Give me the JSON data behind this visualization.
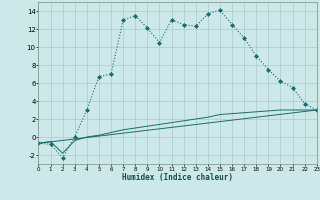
{
  "xlabel": "Humidex (Indice chaleur)",
  "bg_color": "#cce8e8",
  "grid_color": "#aacccc",
  "line_color": "#1a6b6b",
  "xlim": [
    0,
    23
  ],
  "ylim": [
    -3,
    15
  ],
  "xticks": [
    0,
    1,
    2,
    3,
    4,
    5,
    6,
    7,
    8,
    9,
    10,
    11,
    12,
    13,
    14,
    15,
    16,
    17,
    18,
    19,
    20,
    21,
    22,
    23
  ],
  "yticks": [
    -2,
    0,
    2,
    4,
    6,
    8,
    10,
    12,
    14
  ],
  "line1_x": [
    0,
    1,
    2,
    3,
    4,
    5,
    6,
    7,
    8,
    9,
    10,
    11,
    12,
    13,
    14,
    15,
    16,
    17,
    18,
    19,
    20,
    21,
    22,
    23
  ],
  "line1_y": [
    -0.7,
    -0.8,
    -2.3,
    0.0,
    3.0,
    6.7,
    7.0,
    13.0,
    13.5,
    12.1,
    10.5,
    13.0,
    12.5,
    12.3,
    13.7,
    14.1,
    12.5,
    11.0,
    9.0,
    7.5,
    6.2,
    5.5,
    3.7,
    3.0
  ],
  "line2_x": [
    0,
    23
  ],
  "line2_y": [
    -0.7,
    3.0
  ],
  "line3_x": [
    0,
    1,
    2,
    3,
    4,
    5,
    6,
    7,
    8,
    9,
    10,
    11,
    12,
    13,
    14,
    15,
    16,
    17,
    18,
    19,
    20,
    21,
    22,
    23
  ],
  "line3_y": [
    -0.7,
    -0.5,
    -1.8,
    -0.4,
    0.0,
    0.2,
    0.5,
    0.8,
    1.0,
    1.2,
    1.4,
    1.6,
    1.8,
    2.0,
    2.2,
    2.5,
    2.6,
    2.7,
    2.8,
    2.9,
    3.0,
    3.0,
    3.0,
    3.0
  ]
}
